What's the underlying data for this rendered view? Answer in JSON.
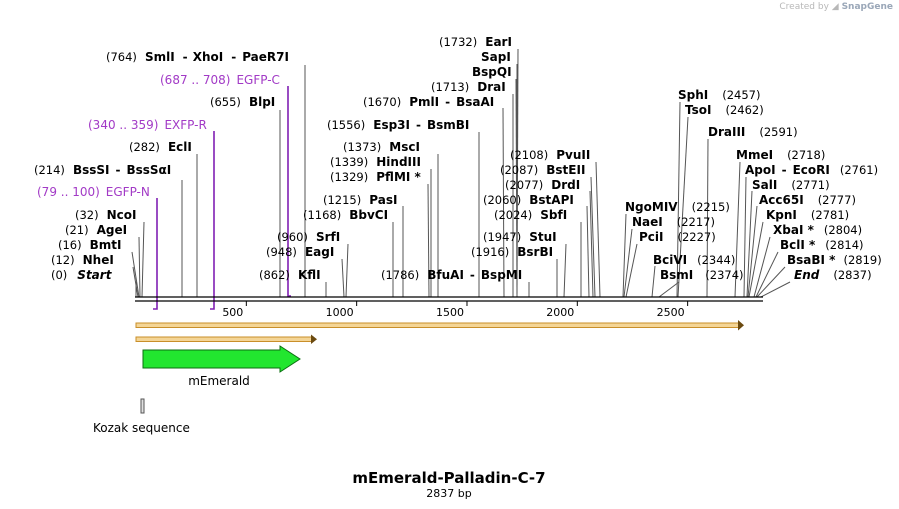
{
  "credit": {
    "prefix": "Created by",
    "brand": "SnapGene"
  },
  "map": {
    "title": "mEmerald-Palladin-C-7",
    "length_label": "2837 bp",
    "length_bp": 2837,
    "ticks": [
      "500",
      "1000",
      "1500",
      "2000",
      "2500"
    ],
    "tick_values": [
      500,
      1000,
      1500,
      2000,
      2500
    ]
  },
  "features": {
    "mEmerald": "mEmerald",
    "kozak": "Kozak sequence"
  },
  "sites": [
    {
      "id": "start",
      "pos": "(0)",
      "name": "Start",
      "bp": 0,
      "italic": true
    },
    {
      "id": "nhei",
      "pos": "(12)",
      "name": "NheI",
      "bp": 12
    },
    {
      "id": "bmti",
      "pos": "(16)",
      "name": "BmtI",
      "bp": 16
    },
    {
      "id": "agei",
      "pos": "(21)",
      "name": "AgeI",
      "bp": 21
    },
    {
      "id": "ncoi",
      "pos": "(32)",
      "name": "NcoI",
      "bp": 32
    },
    {
      "id": "bsssi",
      "pos": "(214)",
      "name": "BssSI",
      "name2": "BssSαI",
      "bp": 214
    },
    {
      "id": "ecli",
      "pos": "(282)",
      "name": "EclI",
      "bp": 282
    },
    {
      "id": "blpi",
      "pos": "(655)",
      "name": "BlpI",
      "bp": 655
    },
    {
      "id": "smli",
      "pos": "(764)",
      "name": "SmlI",
      "name2": "XhoI",
      "name3": "PaeR7I",
      "bp": 764
    },
    {
      "id": "kfli",
      "pos": "(862)",
      "name": "KflI",
      "bp": 862
    },
    {
      "id": "eagi",
      "pos": "(948)",
      "name": "EagI",
      "bp": 948
    },
    {
      "id": "srfi",
      "pos": "(960)",
      "name": "SrfI",
      "bp": 960
    },
    {
      "id": "bbvci",
      "pos": "(1168)",
      "name": "BbvCI",
      "bp": 1168
    },
    {
      "id": "pasi",
      "pos": "(1215)",
      "name": "PasI",
      "bp": 1215
    },
    {
      "id": "pflmi",
      "pos": "(1329)",
      "name": "PflMI *",
      "bp": 1329
    },
    {
      "id": "hindiii",
      "pos": "(1339)",
      "name": "HindIII",
      "bp": 1339
    },
    {
      "id": "msci",
      "pos": "(1373)",
      "name": "MscI",
      "bp": 1373
    },
    {
      "id": "esp3i",
      "pos": "(1556)",
      "name": "Esp3I",
      "name2": "BsmBI",
      "bp": 1556
    },
    {
      "id": "pmli",
      "pos": "(1670)",
      "name": "PmlI",
      "name2": "BsaAI",
      "bp": 1670
    },
    {
      "id": "drai",
      "pos": "(1713)",
      "name": "DraI",
      "bp": 1713
    },
    {
      "id": "bspqi",
      "pos": "",
      "name": "BspQI",
      "bp": 1732
    },
    {
      "id": "sapi",
      "pos": "",
      "name": "SapI",
      "bp": 1732
    },
    {
      "id": "eari",
      "pos": "(1732)",
      "name": "EarI",
      "bp": 1732
    },
    {
      "id": "bfuai",
      "pos": "(1786)",
      "name": "BfuAI",
      "name2": "BspMI",
      "bp": 1786
    },
    {
      "id": "bsrbi",
      "pos": "(1916)",
      "name": "BsrBI",
      "bp": 1916
    },
    {
      "id": "stui",
      "pos": "(1947)",
      "name": "StuI",
      "bp": 1947
    },
    {
      "id": "sbfi",
      "pos": "(2024)",
      "name": "SbfI",
      "bp": 2024
    },
    {
      "id": "bstapi",
      "pos": "(2060)",
      "name": "BstAPI",
      "bp": 2060
    },
    {
      "id": "drdi",
      "pos": "(2077)",
      "name": "DrdI",
      "bp": 2077
    },
    {
      "id": "bsteii",
      "pos": "(2087)",
      "name": "BstEII",
      "bp": 2087
    },
    {
      "id": "pvuii",
      "pos": "(2108)",
      "name": "PvuII",
      "bp": 2108
    },
    {
      "id": "ngomiv",
      "pos": "(2215)",
      "name": "NgoMIV",
      "bp": 2215
    },
    {
      "id": "naei",
      "pos": "(2217)",
      "name": "NaeI",
      "bp": 2217
    },
    {
      "id": "pcii",
      "pos": "(2227)",
      "name": "PciI",
      "bp": 2227
    },
    {
      "id": "bcivi",
      "pos": "(2344)",
      "name": "BciVI",
      "bp": 2344
    },
    {
      "id": "bsmi",
      "pos": "(2374)",
      "name": "BsmI",
      "bp": 2374
    },
    {
      "id": "sphi",
      "pos": "(2457)",
      "name": "SphI",
      "bp": 2457
    },
    {
      "id": "tsoi",
      "pos": "(2462)",
      "name": "TsoI",
      "bp": 2462
    },
    {
      "id": "draiii",
      "pos": "(2591)",
      "name": "DraIII",
      "bp": 2591
    },
    {
      "id": "mmei",
      "pos": "(2718)",
      "name": "MmeI",
      "bp": 2718
    },
    {
      "id": "apoi",
      "pos": "(2761)",
      "name": "ApoI",
      "name2": "EcoRI",
      "bp": 2761
    },
    {
      "id": "sali",
      "pos": "(2771)",
      "name": "SalI",
      "bp": 2771
    },
    {
      "id": "acc65i",
      "pos": "(2777)",
      "name": "Acc65I",
      "bp": 2777
    },
    {
      "id": "kpni",
      "pos": "(2781)",
      "name": "KpnI",
      "bp": 2781
    },
    {
      "id": "xbai",
      "pos": "(2804)",
      "name": "XbaI *",
      "bp": 2804
    },
    {
      "id": "bcli",
      "pos": "(2814)",
      "name": "BclI *",
      "bp": 2814
    },
    {
      "id": "bsabi",
      "pos": "(2819)",
      "name": "BsaBI *",
      "bp": 2819
    },
    {
      "id": "end",
      "pos": "(2837)",
      "name": "End",
      "bp": 2837,
      "italic": true
    }
  ],
  "primers": [
    {
      "id": "egfp-n",
      "range": "(79 .. 100)",
      "name": "EGFP-N",
      "bp": 100
    },
    {
      "id": "exfp-r",
      "range": "(340 .. 359)",
      "name": "EXFP-R",
      "bp": 340
    },
    {
      "id": "egfp-c",
      "range": "(687 .. 708)",
      "name": "EGFP-C",
      "bp": 687
    }
  ]
}
